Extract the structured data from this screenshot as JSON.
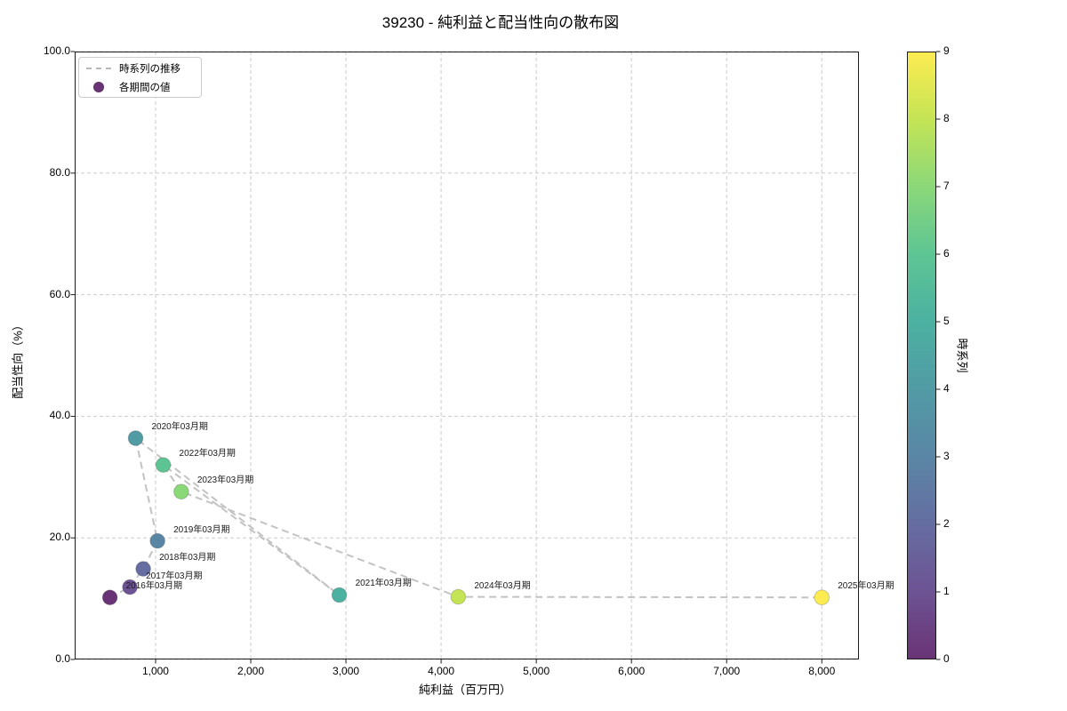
{
  "figure": {
    "title": "39230 - 純利益と配当性向の散布図"
  },
  "legend": {
    "line_label": "時系列の推移",
    "marker_label": "各期間の値"
  },
  "axes": {
    "xlabel": "純利益（百万円）",
    "ylabel": "配当性向（%）",
    "x_ticks": [
      {
        "value": 1000,
        "label": "1,000"
      },
      {
        "value": 2000,
        "label": "2,000"
      },
      {
        "value": 3000,
        "label": "3,000"
      },
      {
        "value": 4000,
        "label": "4,000"
      },
      {
        "value": 5000,
        "label": "5,000"
      },
      {
        "value": 6000,
        "label": "6,000"
      },
      {
        "value": 7000,
        "label": "7,000"
      },
      {
        "value": 8000,
        "label": "8,000"
      }
    ],
    "y_ticks": [
      {
        "value": 0,
        "label": "0.0"
      },
      {
        "value": 20,
        "label": "20.0"
      },
      {
        "value": 40,
        "label": "40.0"
      },
      {
        "value": 60,
        "label": "60.0"
      },
      {
        "value": 80,
        "label": "80.0"
      },
      {
        "value": 100,
        "label": "100.0"
      }
    ],
    "xlim": [
      150,
      8390
    ],
    "ylim": [
      0,
      100
    ]
  },
  "colorbar": {
    "label": "時系列",
    "min": 0,
    "max": 9,
    "ticks": [
      {
        "value": 0,
        "label": "0"
      },
      {
        "value": 1,
        "label": "1"
      },
      {
        "value": 2,
        "label": "2"
      },
      {
        "value": 3,
        "label": "3"
      },
      {
        "value": 4,
        "label": "4"
      },
      {
        "value": 5,
        "label": "5"
      },
      {
        "value": 6,
        "label": "6"
      },
      {
        "value": 7,
        "label": "7"
      },
      {
        "value": 8,
        "label": "8"
      },
      {
        "value": 9,
        "label": "9"
      }
    ],
    "colors": [
      "#693476",
      "#6D5393",
      "#656DA1",
      "#5A86A5",
      "#519BA5",
      "#4CB1A1",
      "#5DC594",
      "#8BD879",
      "#C4E455",
      "#FDEC51"
    ]
  },
  "chart_data": {
    "type": "scatter",
    "title": "39230 - 純利益と配当性向の散布図",
    "xlabel": "純利益（百万円）",
    "ylabel": "配当性向（%）",
    "xlim": [
      150,
      8390
    ],
    "ylim": [
      0,
      100
    ],
    "grid": true,
    "legend_position": "upper left",
    "colorbar_label": "時系列",
    "colorbar_range": [
      0,
      9
    ],
    "trend_line": {
      "name": "時系列の推移",
      "style": "dashed",
      "color": "#bcbcbc"
    },
    "series": [
      {
        "name": "各期間の値",
        "points": [
          {
            "period": "2016年03月期",
            "x": 520,
            "y": 10.2,
            "t": 0
          },
          {
            "period": "2017年03月期",
            "x": 730,
            "y": 11.9,
            "t": 1
          },
          {
            "period": "2018年03月期",
            "x": 870,
            "y": 14.9,
            "t": 2
          },
          {
            "period": "2019年03月期",
            "x": 1020,
            "y": 19.5,
            "t": 3
          },
          {
            "period": "2020年03月期",
            "x": 790,
            "y": 36.4,
            "t": 4
          },
          {
            "period": "2021年03月期",
            "x": 2930,
            "y": 10.6,
            "t": 5
          },
          {
            "period": "2022年03月期",
            "x": 1080,
            "y": 32.0,
            "t": 6
          },
          {
            "period": "2023年03月期",
            "x": 1270,
            "y": 27.6,
            "t": 7
          },
          {
            "period": "2024年03月期",
            "x": 4180,
            "y": 10.3,
            "t": 8
          },
          {
            "period": "2025年03月期",
            "x": 8000,
            "y": 10.2,
            "t": 9
          }
        ]
      }
    ]
  },
  "style_colors": {
    "grid": "#cccccc",
    "spine": "#1a1a1a",
    "trend_line": "#bcbcbc",
    "marker_edge": "rgba(50,50,50,0.25)"
  }
}
